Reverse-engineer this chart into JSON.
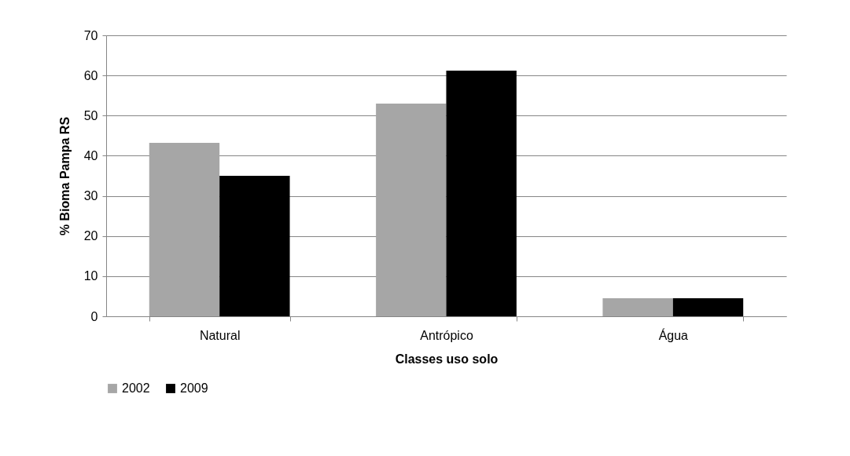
{
  "chart_data": {
    "type": "bar",
    "xlabel": "Classes uso solo",
    "ylabel": "% Bioma Pampa RS",
    "categories": [
      "Natural",
      "Antrópico",
      "Água"
    ],
    "series": [
      {
        "name": "2002",
        "color": "#a6a6a6",
        "values": [
          43.2,
          53,
          4.5
        ]
      },
      {
        "name": "2009",
        "color": "#000000",
        "values": [
          35,
          61.2,
          4.5
        ]
      }
    ],
    "ylim": [
      0,
      70
    ],
    "yticks": [
      0,
      10,
      20,
      30,
      40,
      50,
      60,
      70
    ],
    "grid": "y",
    "legend": "bottom"
  }
}
